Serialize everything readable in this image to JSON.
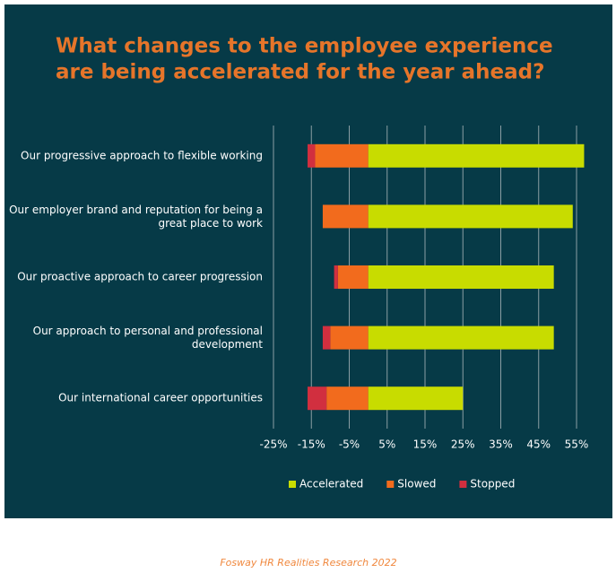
{
  "chart_data": {
    "type": "diverging_bar",
    "title": "What changes to the employee experience\nare being accelerated for the year ahead?",
    "categories": [
      "Our progressive approach to flexible working",
      "Our employer brand and reputation for being a\ngreat place to work",
      "Our proactive approach to career progression",
      "Our approach to personal and professional\ndevelopment",
      "Our international career opportunities"
    ],
    "series": [
      {
        "name": "Accelerated",
        "color": "#c8dc00",
        "values": [
          57,
          54,
          49,
          49,
          25
        ]
      },
      {
        "name": "Slowed",
        "color": "#f26b1d",
        "values": [
          -14,
          -12,
          -8,
          -10,
          -11
        ]
      },
      {
        "name": "Stopped",
        "color": "#d12f3f",
        "values": [
          -2,
          0,
          -1,
          -2,
          -5
        ]
      }
    ],
    "xlim": [
      -25,
      55
    ],
    "xticks": [
      {
        "value": -25,
        "label": "-25%"
      },
      {
        "value": -15,
        "label": "-15%"
      },
      {
        "value": -5,
        "label": "-5%"
      },
      {
        "value": 5,
        "label": "5%"
      },
      {
        "value": 15,
        "label": "15%"
      },
      {
        "value": 25,
        "label": "25%"
      },
      {
        "value": 35,
        "label": "35%"
      },
      {
        "value": 45,
        "label": "45%"
      },
      {
        "value": 55,
        "label": "55%"
      }
    ],
    "grid": true,
    "legend": "bottom",
    "source": "Fosway HR Realities Research 2022"
  }
}
